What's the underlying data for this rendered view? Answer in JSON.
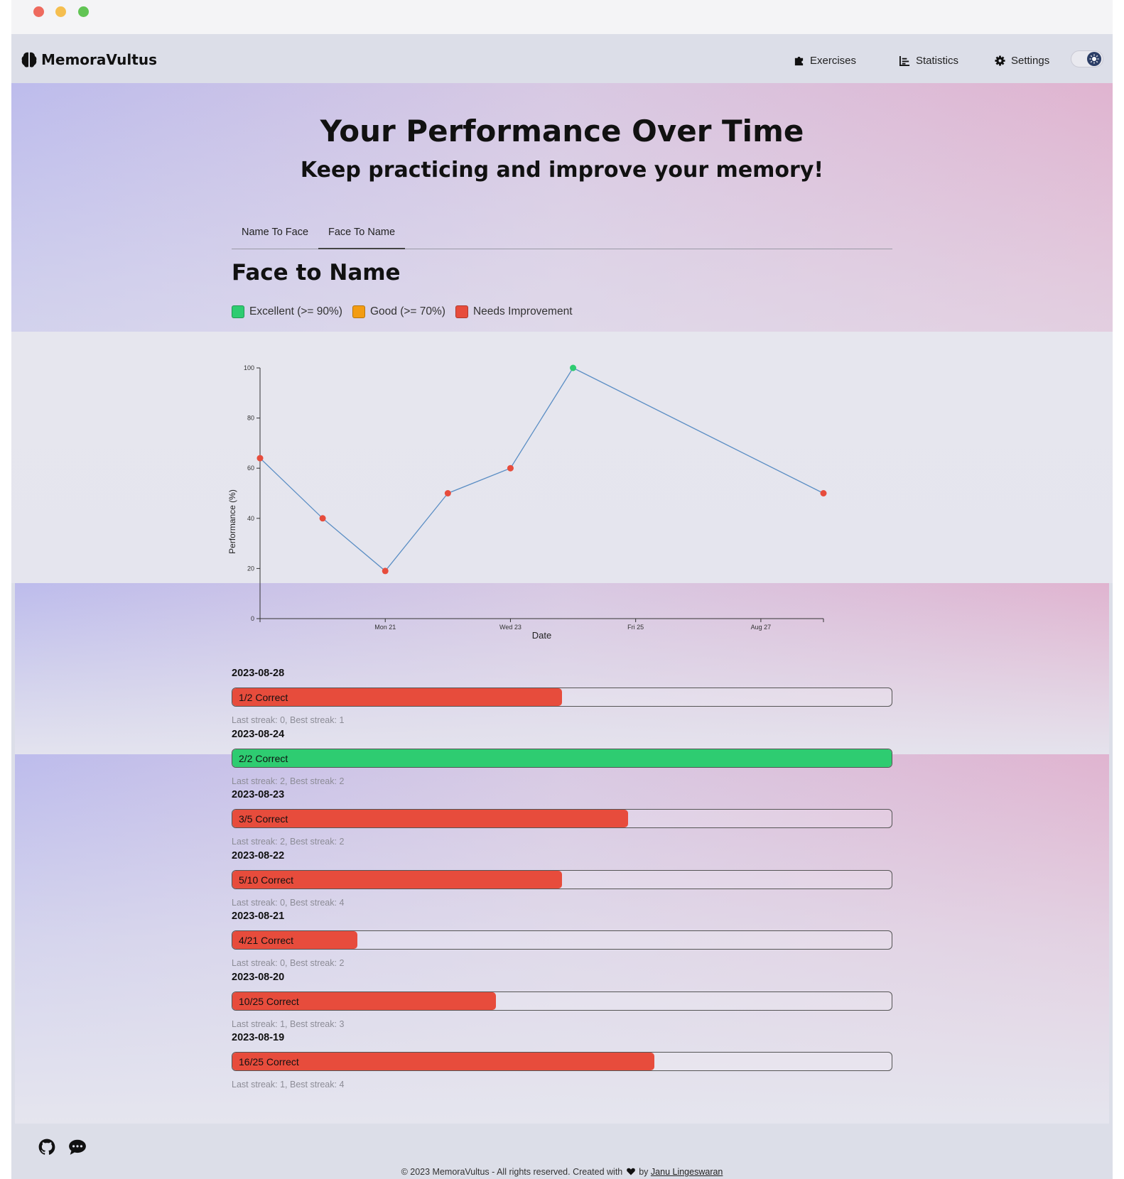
{
  "app": {
    "name": "MemoraVultus"
  },
  "nav": {
    "exercises": "Exercises",
    "statistics": "Statistics",
    "settings": "Settings"
  },
  "hero": {
    "title": "Your Performance Over Time",
    "subtitle": "Keep practicing and improve your memory!"
  },
  "tabs": [
    "Name To Face",
    "Face To Name"
  ],
  "active_tab": "Face To Name",
  "section": {
    "title": "Face to Name"
  },
  "legend": [
    {
      "label": "Excellent (>= 90%)",
      "color": "#2ecc71"
    },
    {
      "label": "Good (>= 70%)",
      "color": "#f39c12"
    },
    {
      "label": "Needs Improvement",
      "color": "#e74c3c"
    }
  ],
  "chart_data": {
    "type": "line",
    "xlabel": "Date",
    "ylabel": "Performance (%)",
    "ylim": [
      0,
      100
    ],
    "yticks": [
      0,
      20,
      40,
      60,
      80,
      100
    ],
    "xticks": [
      "Mon 21",
      "Wed 23",
      "Fri 25",
      "Aug 27"
    ],
    "x": [
      "2023-08-19",
      "2023-08-20",
      "2023-08-21",
      "2023-08-22",
      "2023-08-23",
      "2023-08-24",
      "2023-08-28"
    ],
    "values": [
      64,
      40,
      19,
      50,
      60,
      100,
      50
    ],
    "line_color": "#5b8ec4",
    "grid": false
  },
  "records": [
    {
      "date": "2023-08-28",
      "label": "1/2 Correct",
      "ratio": 0.5,
      "color": "#e74c3c",
      "streak": "Last streak: 0, Best streak: 1"
    },
    {
      "date": "2023-08-24",
      "label": "2/2 Correct",
      "ratio": 1.0,
      "color": "#2ecc71",
      "streak": "Last streak: 2, Best streak: 2"
    },
    {
      "date": "2023-08-23",
      "label": "3/5 Correct",
      "ratio": 0.6,
      "color": "#e74c3c",
      "streak": "Last streak: 2, Best streak: 2"
    },
    {
      "date": "2023-08-22",
      "label": "5/10 Correct",
      "ratio": 0.5,
      "color": "#e74c3c",
      "streak": "Last streak: 0, Best streak: 4"
    },
    {
      "date": "2023-08-21",
      "label": "4/21 Correct",
      "ratio": 0.19,
      "color": "#e74c3c",
      "streak": "Last streak: 0, Best streak: 2"
    },
    {
      "date": "2023-08-20",
      "label": "10/25 Correct",
      "ratio": 0.4,
      "color": "#e74c3c",
      "streak": "Last streak: 1, Best streak: 3"
    },
    {
      "date": "2023-08-19",
      "label": "16/25 Correct",
      "ratio": 0.64,
      "color": "#e74c3c",
      "streak": "Last streak: 1, Best streak: 4"
    }
  ],
  "footer": {
    "copyright": "© 2023 MemoraVultus - All rights reserved. Created with",
    "by": "by",
    "author": "Janu Lingeswaran",
    "icons": [
      "github-icon",
      "chat-icon",
      "heart-icon"
    ]
  }
}
